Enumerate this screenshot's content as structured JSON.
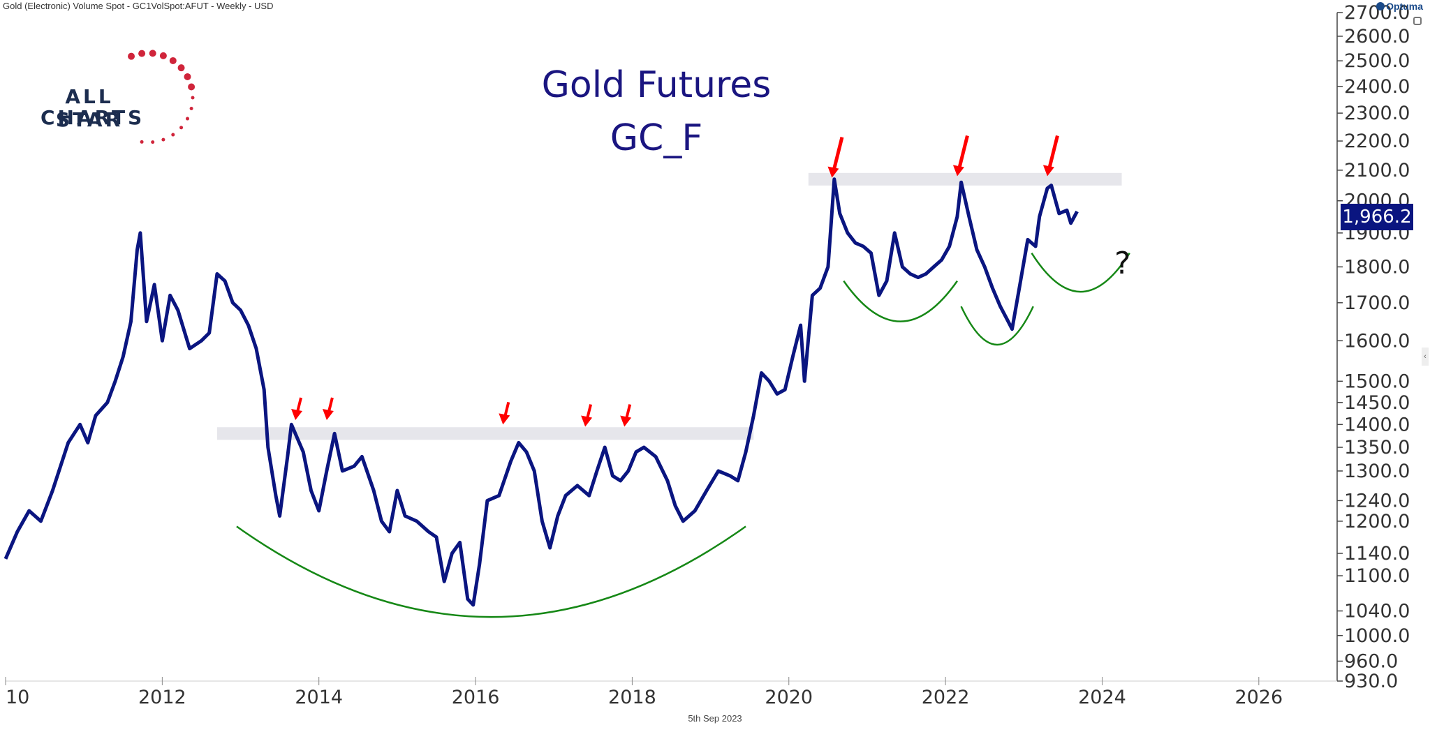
{
  "header": {
    "instrument": "Gold (Electronic) Volume Spot - GC1VolSpot:AFUT - Weekly - USD",
    "brand": "Optuma"
  },
  "title": {
    "line1": "Gold Futures",
    "line2": "GC_F"
  },
  "logo": {
    "line1": "ALL STAR",
    "line2": "CHARTS"
  },
  "last_price_label": "1,966.2",
  "annotation_question": "?",
  "footer_date": "5th Sep 2023",
  "chart_data": {
    "type": "line",
    "yscale": "log",
    "ylim": [
      930,
      2700
    ],
    "xlim": [
      2010.0,
      2027.0
    ],
    "x_ticks": [
      "10",
      "2012",
      "2014",
      "2016",
      "2018",
      "2020",
      "2022",
      "2024",
      "2026"
    ],
    "y_ticks": [
      "2700.0",
      "2600.0",
      "2500.0",
      "2400.0",
      "2300.0",
      "2200.0",
      "2100.0",
      "2000.0",
      "1900.0",
      "1800.0",
      "1700.0",
      "1600.0",
      "1500.0",
      "1450.0",
      "1400.0",
      "1350.0",
      "1300.0",
      "1240.0",
      "1200.0",
      "1140.0",
      "1100.0",
      "1040.0",
      "1000.0",
      "960.0",
      "930.0"
    ],
    "series": [
      {
        "color": "#0a1580",
        "points": [
          [
            2010.0,
            1130
          ],
          [
            2010.15,
            1180
          ],
          [
            2010.3,
            1220
          ],
          [
            2010.45,
            1200
          ],
          [
            2010.6,
            1260
          ],
          [
            2010.8,
            1360
          ],
          [
            2010.95,
            1400
          ],
          [
            2011.05,
            1360
          ],
          [
            2011.15,
            1420
          ],
          [
            2011.3,
            1450
          ],
          [
            2011.4,
            1500
          ],
          [
            2011.5,
            1560
          ],
          [
            2011.6,
            1650
          ],
          [
            2011.68,
            1850
          ],
          [
            2011.72,
            1900
          ],
          [
            2011.8,
            1650
          ],
          [
            2011.9,
            1750
          ],
          [
            2012.0,
            1600
          ],
          [
            2012.1,
            1720
          ],
          [
            2012.2,
            1680
          ],
          [
            2012.35,
            1580
          ],
          [
            2012.5,
            1600
          ],
          [
            2012.6,
            1620
          ],
          [
            2012.7,
            1780
          ],
          [
            2012.8,
            1760
          ],
          [
            2012.9,
            1700
          ],
          [
            2013.0,
            1680
          ],
          [
            2013.1,
            1640
          ],
          [
            2013.2,
            1580
          ],
          [
            2013.3,
            1480
          ],
          [
            2013.35,
            1350
          ],
          [
            2013.45,
            1250
          ],
          [
            2013.5,
            1210
          ],
          [
            2013.6,
            1330
          ],
          [
            2013.65,
            1400
          ],
          [
            2013.8,
            1340
          ],
          [
            2013.9,
            1260
          ],
          [
            2014.0,
            1220
          ],
          [
            2014.1,
            1300
          ],
          [
            2014.2,
            1380
          ],
          [
            2014.3,
            1300
          ],
          [
            2014.45,
            1310
          ],
          [
            2014.55,
            1330
          ],
          [
            2014.7,
            1260
          ],
          [
            2014.8,
            1200
          ],
          [
            2014.9,
            1180
          ],
          [
            2015.0,
            1260
          ],
          [
            2015.1,
            1210
          ],
          [
            2015.25,
            1200
          ],
          [
            2015.4,
            1180
          ],
          [
            2015.5,
            1170
          ],
          [
            2015.6,
            1090
          ],
          [
            2015.7,
            1140
          ],
          [
            2015.8,
            1160
          ],
          [
            2015.9,
            1060
          ],
          [
            2015.97,
            1050
          ],
          [
            2016.05,
            1120
          ],
          [
            2016.15,
            1240
          ],
          [
            2016.3,
            1250
          ],
          [
            2016.45,
            1320
          ],
          [
            2016.55,
            1360
          ],
          [
            2016.65,
            1340
          ],
          [
            2016.75,
            1300
          ],
          [
            2016.85,
            1200
          ],
          [
            2016.95,
            1150
          ],
          [
            2017.05,
            1210
          ],
          [
            2017.15,
            1250
          ],
          [
            2017.3,
            1270
          ],
          [
            2017.45,
            1250
          ],
          [
            2017.55,
            1300
          ],
          [
            2017.65,
            1350
          ],
          [
            2017.75,
            1290
          ],
          [
            2017.85,
            1280
          ],
          [
            2017.95,
            1300
          ],
          [
            2018.05,
            1340
          ],
          [
            2018.15,
            1350
          ],
          [
            2018.3,
            1330
          ],
          [
            2018.45,
            1280
          ],
          [
            2018.55,
            1230
          ],
          [
            2018.65,
            1200
          ],
          [
            2018.8,
            1220
          ],
          [
            2018.95,
            1260
          ],
          [
            2019.1,
            1300
          ],
          [
            2019.25,
            1290
          ],
          [
            2019.35,
            1280
          ],
          [
            2019.45,
            1340
          ],
          [
            2019.55,
            1420
          ],
          [
            2019.65,
            1520
          ],
          [
            2019.75,
            1500
          ],
          [
            2019.85,
            1470
          ],
          [
            2019.95,
            1480
          ],
          [
            2020.05,
            1560
          ],
          [
            2020.15,
            1640
          ],
          [
            2020.2,
            1500
          ],
          [
            2020.3,
            1720
          ],
          [
            2020.4,
            1740
          ],
          [
            2020.5,
            1800
          ],
          [
            2020.58,
            2070
          ],
          [
            2020.65,
            1960
          ],
          [
            2020.75,
            1900
          ],
          [
            2020.85,
            1870
          ],
          [
            2020.95,
            1860
          ],
          [
            2021.05,
            1840
          ],
          [
            2021.15,
            1720
          ],
          [
            2021.25,
            1760
          ],
          [
            2021.35,
            1900
          ],
          [
            2021.45,
            1800
          ],
          [
            2021.55,
            1780
          ],
          [
            2021.65,
            1770
          ],
          [
            2021.75,
            1780
          ],
          [
            2021.85,
            1800
          ],
          [
            2021.95,
            1820
          ],
          [
            2022.05,
            1860
          ],
          [
            2022.15,
            1950
          ],
          [
            2022.2,
            2060
          ],
          [
            2022.3,
            1950
          ],
          [
            2022.4,
            1850
          ],
          [
            2022.5,
            1800
          ],
          [
            2022.6,
            1740
          ],
          [
            2022.7,
            1690
          ],
          [
            2022.8,
            1650
          ],
          [
            2022.85,
            1630
          ],
          [
            2022.95,
            1750
          ],
          [
            2023.05,
            1880
          ],
          [
            2023.15,
            1860
          ],
          [
            2023.2,
            1950
          ],
          [
            2023.3,
            2040
          ],
          [
            2023.35,
            2050
          ],
          [
            2023.45,
            1960
          ],
          [
            2023.55,
            1970
          ],
          [
            2023.6,
            1930
          ],
          [
            2023.68,
            1966.2
          ]
        ]
      }
    ],
    "annotations": {
      "resistance_zones": [
        {
          "x_start": 2012.7,
          "x_end": 2019.55,
          "y": 1380
        },
        {
          "x_start": 2020.25,
          "x_end": 2024.25,
          "y": 2070
        }
      ],
      "arrows": [
        {
          "x": 2013.7,
          "y": 1410
        },
        {
          "x": 2014.1,
          "y": 1410
        },
        {
          "x": 2016.35,
          "y": 1400
        },
        {
          "x": 2017.4,
          "y": 1395
        },
        {
          "x": 2017.9,
          "y": 1395
        },
        {
          "x": 2020.55,
          "y": 2075
        },
        {
          "x": 2022.15,
          "y": 2080
        },
        {
          "x": 2023.3,
          "y": 2080
        }
      ],
      "bowls": [
        {
          "x_start": 2012.95,
          "x_end": 2019.45,
          "y_top": 1190,
          "y_bottom": 1030
        },
        {
          "x_start": 2020.7,
          "x_end": 2022.15,
          "y_top": 1760,
          "y_bottom": 1650
        },
        {
          "x_start": 2022.2,
          "x_end": 2023.12,
          "y_top": 1690,
          "y_bottom": 1590
        },
        {
          "x_start": 2023.1,
          "x_end": 2024.35,
          "y_top": 1840,
          "y_bottom": 1730
        }
      ]
    }
  }
}
